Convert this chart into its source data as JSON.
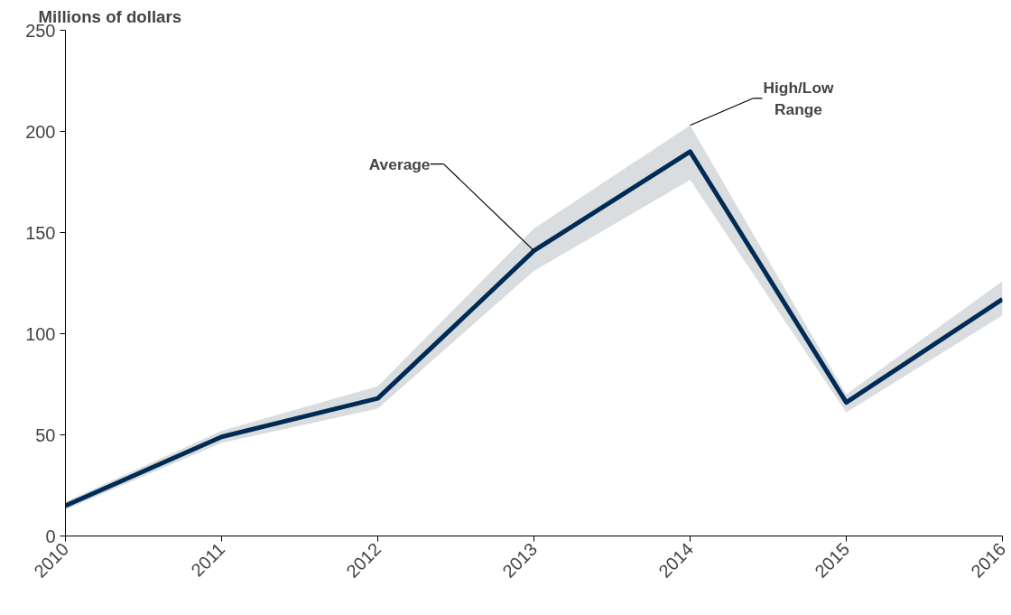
{
  "chart_data": {
    "type": "line",
    "ylabel": "Millions of dollars",
    "x": [
      2010,
      2011,
      2012,
      2013,
      2014,
      2015,
      2016
    ],
    "series": [
      {
        "color": "#002b55",
        "values": [
          15,
          49,
          68,
          141,
          190,
          66,
          117
        ],
        "lower": [
          13,
          46,
          63,
          131,
          176,
          61,
          109
        ],
        "upper": [
          17,
          52,
          74,
          152,
          203,
          70,
          126
        ]
      }
    ],
    "xlim": [
      2010,
      2016
    ],
    "xticks": [
      2010,
      2011,
      2012,
      2013,
      2014,
      2015,
      2016
    ],
    "ylim": [
      0,
      250
    ],
    "yticks": [
      0,
      50,
      100,
      150,
      200,
      250
    ],
    "grid": false,
    "marker": "none",
    "line_style": "solid",
    "annotations": [
      {
        "text": "Average",
        "x": 2013,
        "y": 141
      },
      {
        "text": "High/Low\nRange",
        "x": 2014,
        "y": 203
      }
    ]
  }
}
